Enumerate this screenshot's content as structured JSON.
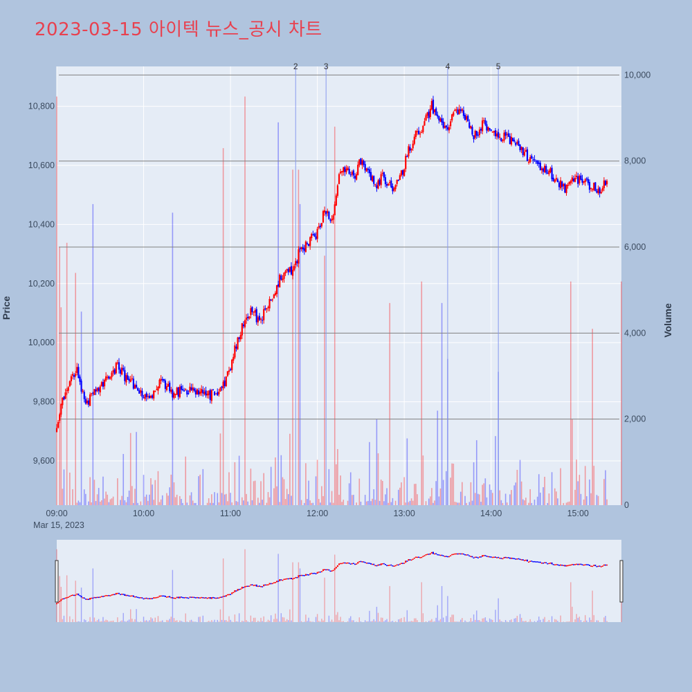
{
  "title": "2023-03-15 아이텍 뉴스_공시 차트",
  "colors": {
    "background": "#b0c4de",
    "plot_background": "#e5ecf6",
    "up": "#ff0000",
    "down": "#0000ff",
    "title": "#e8414f",
    "hline": "#7f7f7f",
    "news_line": "#8899ee"
  },
  "chart_data": {
    "type": "candlestick",
    "title": "2023-03-15 아이텍 뉴스_공시 차트",
    "ylabel": "Price",
    "y2label": "Volume",
    "xlabel": "",
    "date_label": "Mar 15, 2023",
    "xlim": [
      "09:00",
      "15:30"
    ],
    "ylim": [
      9450,
      10935
    ],
    "y2lim": [
      0,
      10200
    ],
    "y_ticks": [
      9600,
      9800,
      10000,
      10200,
      10400,
      10600,
      10800
    ],
    "y_tick_labels": [
      "9,600",
      "9,800",
      "10,000",
      "10,200",
      "10,400",
      "10,600",
      "10,800"
    ],
    "y2_ticks": [
      0,
      2000,
      4000,
      6000,
      8000,
      10000
    ],
    "y2_tick_labels": [
      "0",
      "2,000",
      "4,000",
      "6,000",
      "8,000",
      "10,000"
    ],
    "x_ticks": [
      "09:00",
      "10:00",
      "11:00",
      "12:00",
      "13:00",
      "14:00",
      "15:00"
    ],
    "horizontal_lines_volume": [
      2000,
      4000,
      6000,
      8000,
      10000
    ],
    "annotations": [
      {
        "label": "2",
        "time": "11:45"
      },
      {
        "label": "3",
        "time": "12:06"
      },
      {
        "label": "4",
        "time": "13:30"
      },
      {
        "label": "5",
        "time": "14:05"
      }
    ],
    "price_waypoints": [
      [
        "09:00",
        9700
      ],
      [
        "09:02",
        9760
      ],
      [
        "09:05",
        9820
      ],
      [
        "09:09",
        9880
      ],
      [
        "09:14",
        9900
      ],
      [
        "09:20",
        9780
      ],
      [
        "09:26",
        9840
      ],
      [
        "09:35",
        9880
      ],
      [
        "09:42",
        9920
      ],
      [
        "09:48",
        9880
      ],
      [
        "09:55",
        9850
      ],
      [
        "10:05",
        9810
      ],
      [
        "10:12",
        9870
      ],
      [
        "10:20",
        9830
      ],
      [
        "10:30",
        9840
      ],
      [
        "10:45",
        9820
      ],
      [
        "10:55",
        9850
      ],
      [
        "11:00",
        9920
      ],
      [
        "11:05",
        10010
      ],
      [
        "11:10",
        10080
      ],
      [
        "11:15",
        10120
      ],
      [
        "11:20",
        10060
      ],
      [
        "11:25",
        10120
      ],
      [
        "11:30",
        10170
      ],
      [
        "11:35",
        10230
      ],
      [
        "11:42",
        10240
      ],
      [
        "11:48",
        10310
      ],
      [
        "11:55",
        10350
      ],
      [
        "12:00",
        10370
      ],
      [
        "12:05",
        10450
      ],
      [
        "12:10",
        10420
      ],
      [
        "12:15",
        10560
      ],
      [
        "12:20",
        10600
      ],
      [
        "12:25",
        10560
      ],
      [
        "12:30",
        10620
      ],
      [
        "12:35",
        10580
      ],
      [
        "12:40",
        10530
      ],
      [
        "12:45",
        10560
      ],
      [
        "12:52",
        10520
      ],
      [
        "12:58",
        10570
      ],
      [
        "13:03",
        10650
      ],
      [
        "13:08",
        10700
      ],
      [
        "13:14",
        10740
      ],
      [
        "13:19",
        10800
      ],
      [
        "13:23",
        10760
      ],
      [
        "13:29",
        10720
      ],
      [
        "13:35",
        10780
      ],
      [
        "13:42",
        10770
      ],
      [
        "13:48",
        10700
      ],
      [
        "13:55",
        10740
      ],
      [
        "14:03",
        10710
      ],
      [
        "14:10",
        10690
      ],
      [
        "14:18",
        10680
      ],
      [
        "14:25",
        10630
      ],
      [
        "14:32",
        10600
      ],
      [
        "14:38",
        10590
      ],
      [
        "14:45",
        10550
      ],
      [
        "14:52",
        10520
      ],
      [
        "14:58",
        10560
      ],
      [
        "15:05",
        10540
      ],
      [
        "15:10",
        10530
      ],
      [
        "15:15",
        10510
      ],
      [
        "15:20",
        10560
      ],
      [
        "15:25",
        10560
      ]
    ],
    "volume_spikes": [
      [
        "09:00",
        9500
      ],
      [
        "09:02",
        6000
      ],
      [
        "09:03",
        4600
      ],
      [
        "09:07",
        6100
      ],
      [
        "09:13",
        5400
      ],
      [
        "09:17",
        4500
      ],
      [
        "09:25",
        7000
      ],
      [
        "10:20",
        6800
      ],
      [
        "10:55",
        8300
      ],
      [
        "11:10",
        9500
      ],
      [
        "11:33",
        8900
      ],
      [
        "11:43",
        7800
      ],
      [
        "11:47",
        7800
      ],
      [
        "11:48",
        7000
      ],
      [
        "12:05",
        5800
      ],
      [
        "12:12",
        8800
      ],
      [
        "12:50",
        4700
      ],
      [
        "13:12",
        5200
      ],
      [
        "13:26",
        4700
      ],
      [
        "13:30",
        3400
      ],
      [
        "14:05",
        3100
      ],
      [
        "14:55",
        5200
      ],
      [
        "15:10",
        4100
      ],
      [
        "15:30",
        5200
      ]
    ],
    "range_slider": {
      "x_range": [
        "09:00",
        "15:30"
      ]
    }
  }
}
